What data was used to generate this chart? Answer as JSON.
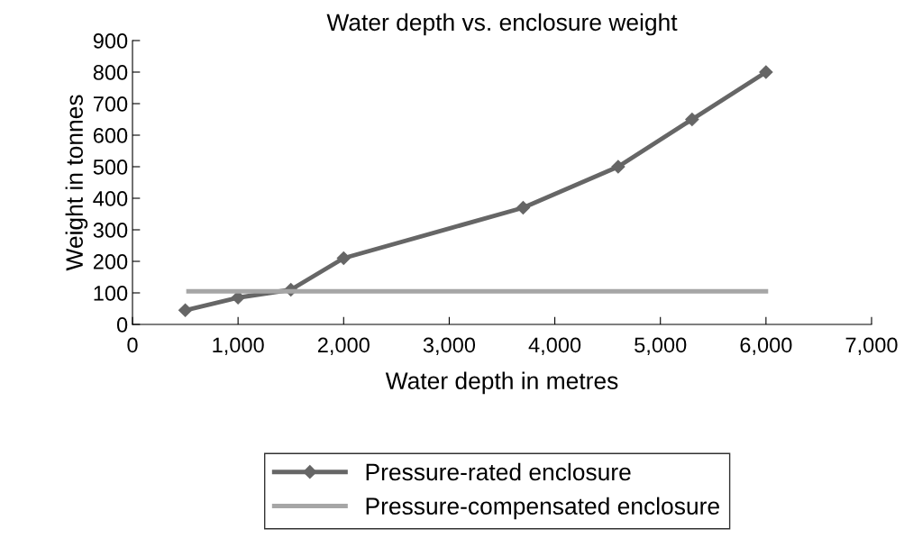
{
  "chart_data": {
    "type": "line",
    "title": "Water depth vs. enclosure weight",
    "xlabel": "Water depth in metres",
    "ylabel": "Weight in tonnes",
    "series": [
      {
        "name": "Pressure-rated enclosure",
        "color": "#666666",
        "marker": "diamond",
        "x": [
          500,
          1000,
          1500,
          2000,
          3700,
          4600,
          5300,
          6000
        ],
        "values": [
          45,
          85,
          110,
          210,
          370,
          500,
          650,
          800
        ]
      },
      {
        "name": "Pressure-compensated enclosure",
        "color": "#a6a6a6",
        "marker": "none",
        "x": [
          530,
          6000
        ],
        "values": [
          105,
          105
        ]
      }
    ],
    "xlim": [
      0,
      7000
    ],
    "xticks": [
      0,
      {
        "value": 1000,
        "label": "1,000"
      },
      {
        "value": 2000,
        "label": "2,000"
      },
      {
        "value": 3000,
        "label": "3,000"
      },
      {
        "value": 4000,
        "label": "4,000"
      },
      {
        "value": 5000,
        "label": "5,000"
      },
      {
        "value": 6000,
        "label": "6,000"
      },
      {
        "value": 7000,
        "label": "7,000"
      }
    ],
    "ylim": [
      0,
      900
    ],
    "yticks": [
      0,
      100,
      200,
      300,
      400,
      500,
      600,
      700,
      800,
      900
    ],
    "grid": false,
    "legend": "bottom"
  }
}
